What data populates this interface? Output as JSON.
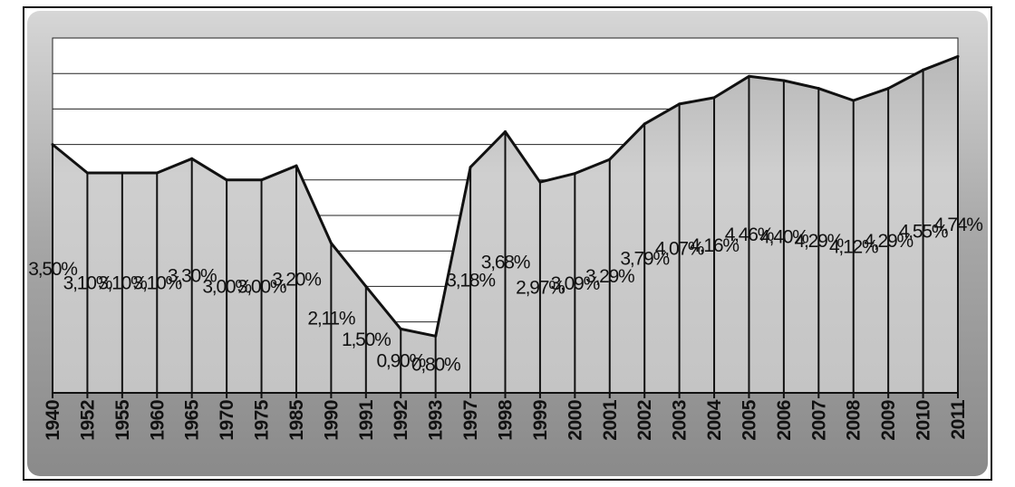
{
  "colors": {
    "frame_fill": "#a9a9a9",
    "plot_background": "#ffffff",
    "area_fill": "#c2c2c2",
    "line": "#111111",
    "gridline": "#111111",
    "text": "#111111"
  },
  "chart_data": {
    "type": "area",
    "title": "",
    "xlabel": "",
    "ylabel": "",
    "categories": [
      "1940",
      "1952",
      "1955",
      "1960",
      "1965",
      "1970",
      "1975",
      "1985",
      "1990",
      "1991",
      "1992",
      "1993",
      "1997",
      "1998",
      "1999",
      "2000",
      "2001",
      "2002",
      "2003",
      "2004",
      "2005",
      "2006",
      "2007",
      "2008",
      "2009",
      "2010",
      "2011"
    ],
    "values": [
      3.5,
      3.1,
      3.1,
      3.1,
      3.3,
      3.0,
      3.0,
      3.2,
      2.11,
      1.5,
      0.9,
      0.8,
      3.18,
      3.68,
      2.97,
      3.09,
      3.29,
      3.79,
      4.07,
      4.16,
      4.46,
      4.4,
      4.29,
      4.12,
      4.29,
      4.55,
      4.74
    ],
    "data_labels": [
      "3,50%",
      "3,10%",
      "3,10%",
      "3,10%",
      "3,30%",
      "3,00%",
      "3,00%",
      "3,20%",
      "2,11%",
      "1,50%",
      "0,90%",
      "0,80%",
      "3,18%",
      "3,68%",
      "2,97%",
      "3,09%",
      "3,29%",
      "3,79%",
      "4,07%",
      "4,16%",
      "4,46%",
      "4,40%",
      "4,29%",
      "4,12%",
      "4,29%",
      "4,55%",
      "4,74%"
    ],
    "ylim": [
      0,
      5
    ],
    "y_gridline_step": 0.5,
    "y_axis_labels_visible": false,
    "grid": true,
    "vertical_drop_lines": true,
    "legend": "none",
    "x_tick_rotation": "vertical"
  }
}
